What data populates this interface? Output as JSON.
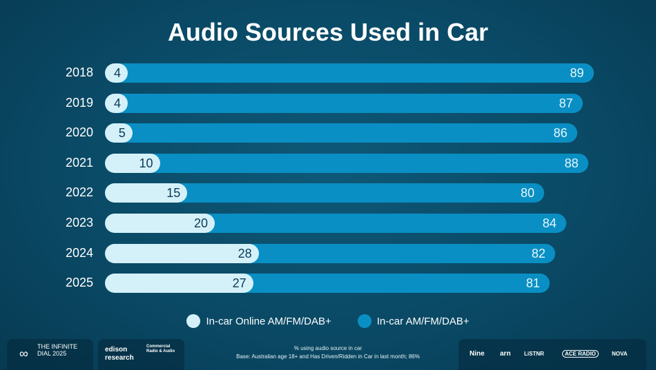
{
  "chart_data": {
    "type": "bar",
    "orientation": "horizontal",
    "title": "Audio Sources Used in Car",
    "categories": [
      "2018",
      "2019",
      "2020",
      "2021",
      "2022",
      "2023",
      "2024",
      "2025"
    ],
    "series": [
      {
        "name": "In-car Online AM/FM/DAB+",
        "color": "#d4f1fa",
        "values": [
          4,
          4,
          5,
          10,
          15,
          20,
          28,
          27
        ]
      },
      {
        "name": "In-car AM/FM/DAB+",
        "color": "#0a8fc4",
        "values": [
          89,
          87,
          86,
          88,
          80,
          84,
          82,
          81
        ]
      }
    ],
    "xlim": [
      0,
      100
    ],
    "grid": false,
    "legend": "bottom"
  },
  "footer": {
    "note_line1": "% using audio source in car",
    "note_line2": "Base: Australian age 18+ and Has Driven/Ridden in Car in last month; 86%",
    "logos": [
      "THE INFINITE DIAL 2025",
      "edison research",
      "Commercial Radio & Audio",
      "Nine",
      "arn",
      "LiSTNR",
      "ACE RADIO",
      "NOVA"
    ]
  }
}
